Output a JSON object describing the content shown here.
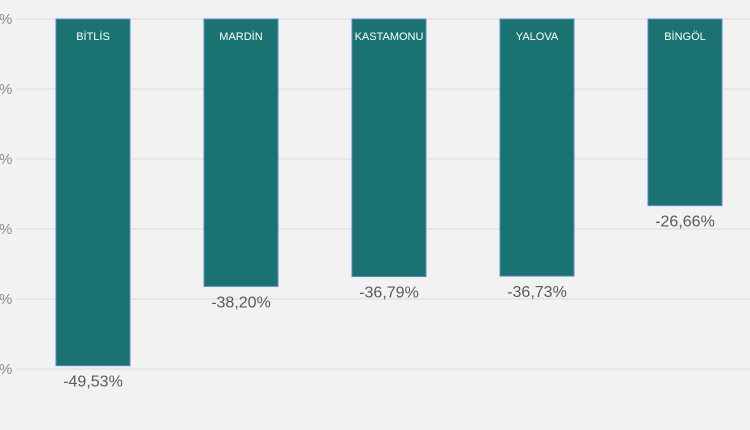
{
  "chart_data": {
    "type": "bar",
    "categories": [
      "BİTLİS",
      "MARDİN",
      "KASTAMONU",
      "YALOVA",
      "BİNGÖL"
    ],
    "values": [
      -49.53,
      -38.2,
      -36.79,
      -36.73,
      -26.66
    ],
    "data_labels": [
      "-49,53%",
      "-38,20%",
      "-36,79%",
      "-36,73%",
      "-26,66%"
    ],
    "ytick_labels": [
      "%",
      "%",
      "%",
      "%",
      "%",
      "%"
    ],
    "ylim": [
      -50,
      0
    ],
    "grid": true,
    "bar_color": "#1a7370",
    "bar_border_color": "#5b8bd0",
    "category_label_color": "#ffffff",
    "data_label_color": "#595959",
    "gridline_color": "#d9d9d9",
    "background": "#f2f2f2"
  }
}
